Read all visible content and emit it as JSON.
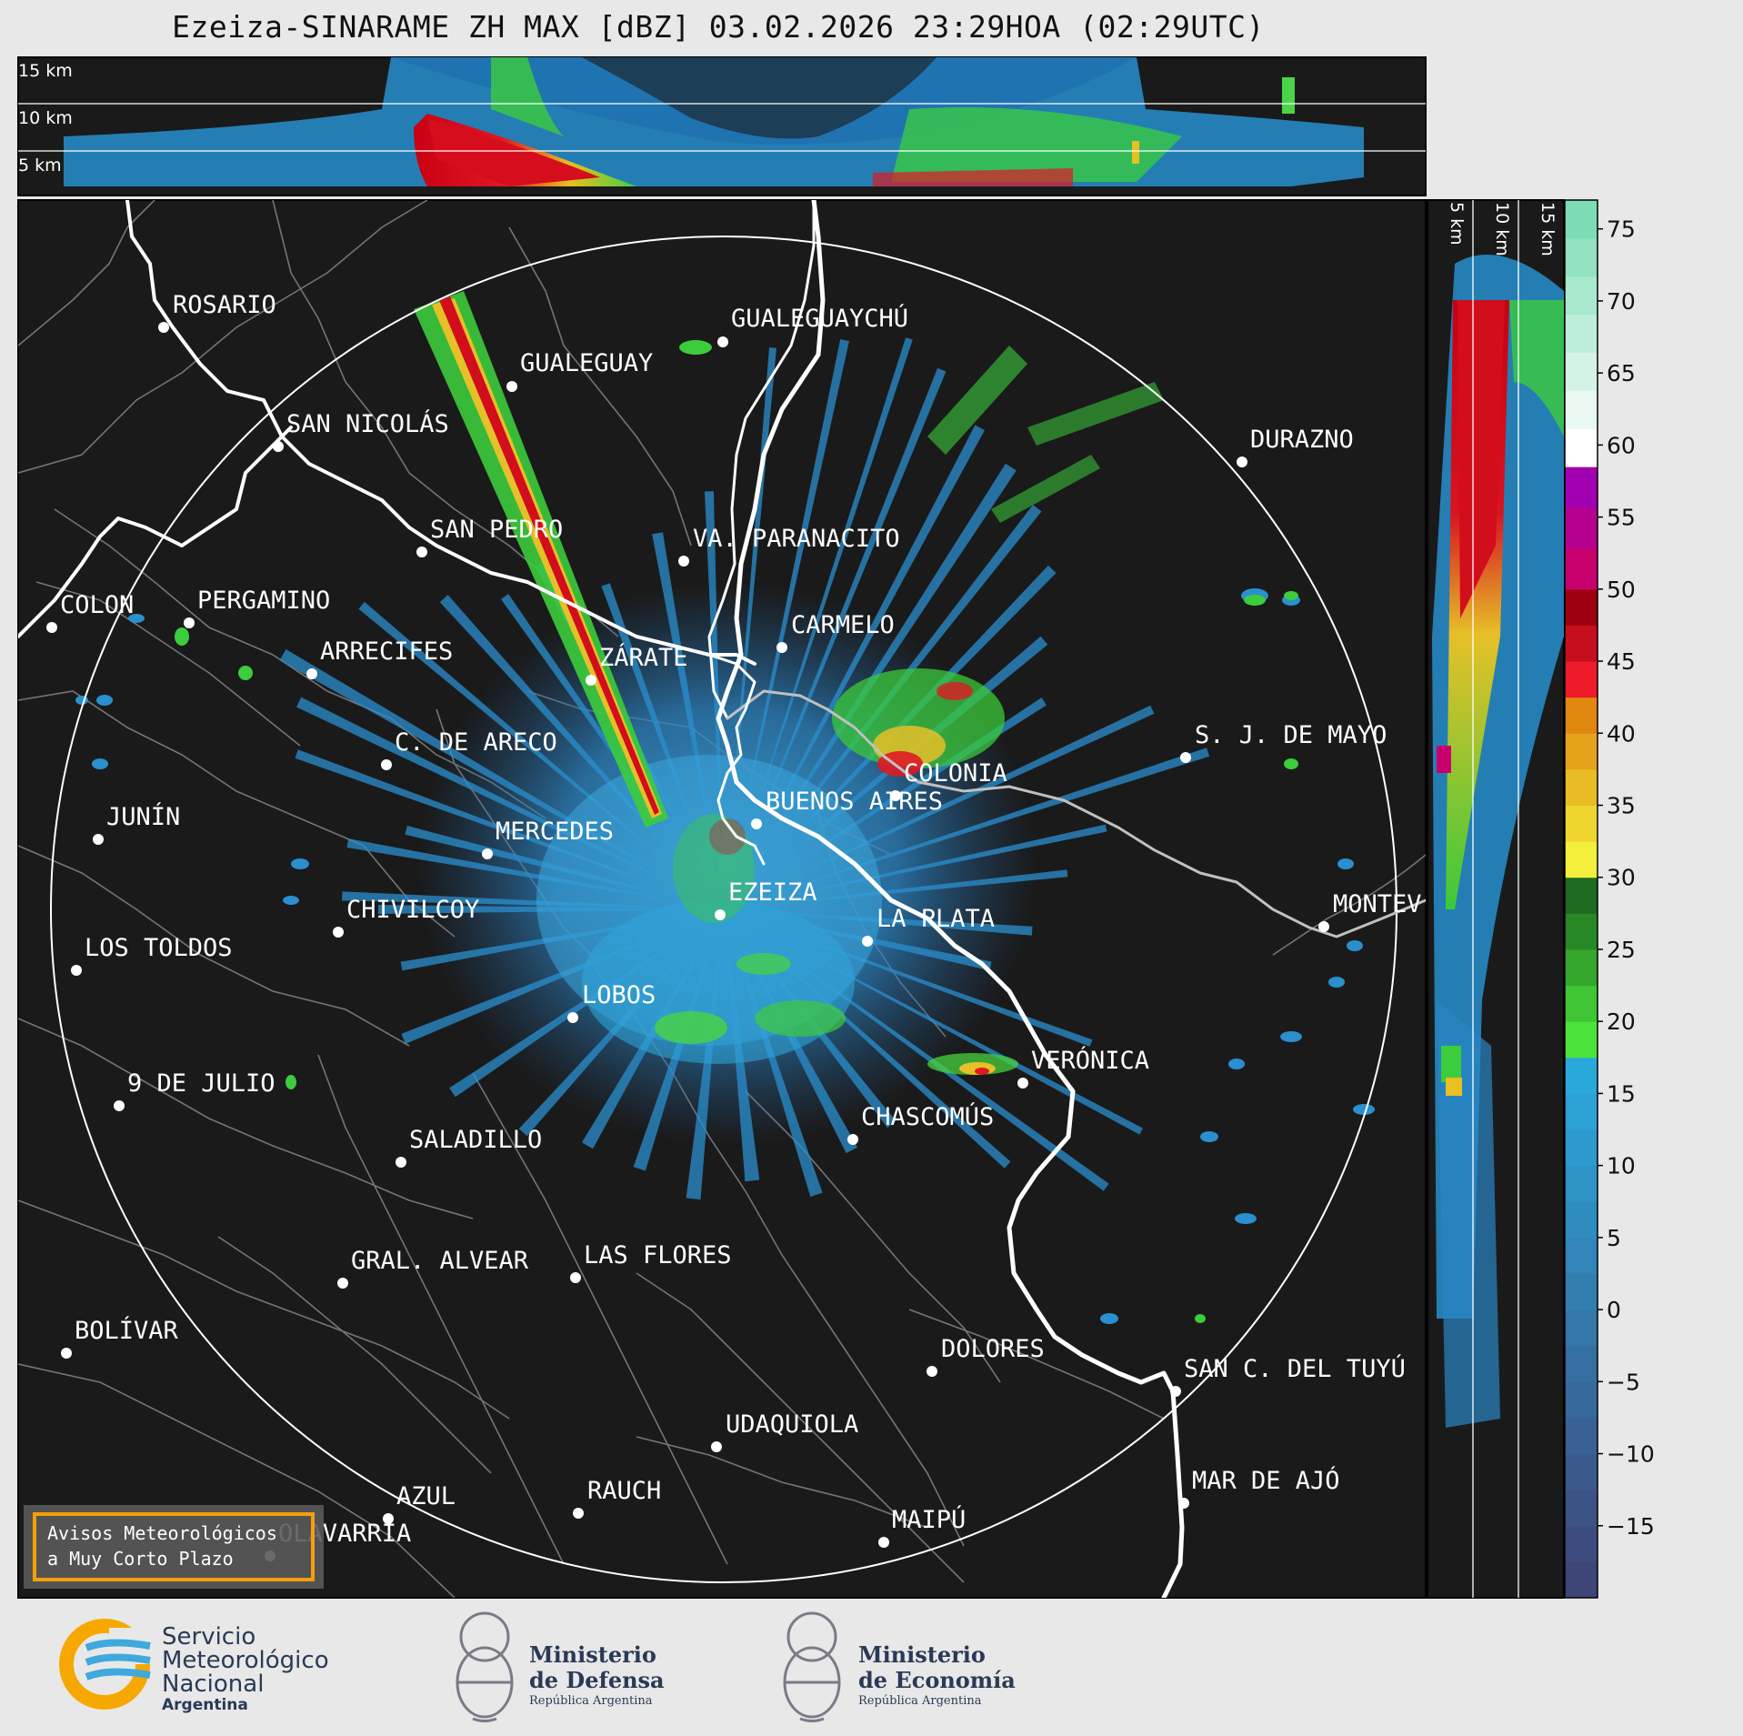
{
  "title": "Ezeiza-SINARAME ZH MAX [dBZ] 03.02.2026 23:29HOA (02:29UTC)",
  "top_panel": {
    "labels": [
      "15 km",
      "10 km",
      "5 km"
    ]
  },
  "side_panel": {
    "labels": [
      "5 km",
      "10 km",
      "15 km"
    ]
  },
  "colorbar": {
    "ticks": [
      "75",
      "70",
      "65",
      "60",
      "55",
      "50",
      "45",
      "40",
      "35",
      "30",
      "25",
      "20",
      "15",
      "10",
      "5",
      "0",
      "−5",
      "−10",
      "−15"
    ],
    "range": [
      -20,
      77
    ],
    "stops": [
      {
        "from": -20,
        "to": 17.5,
        "color_low": "#3e4577",
        "color_high": "#29a8dc"
      },
      {
        "from": 17.5,
        "to": 30,
        "color_low": "#4be33b",
        "color_high": "#1e6a1f"
      },
      {
        "from": 30,
        "to": 42.5,
        "color_low": "#f2ef3a",
        "color_high": "#e08810"
      },
      {
        "from": 42.5,
        "to": 50,
        "color_low": "#ee1c2a",
        "color_high": "#9e0012"
      },
      {
        "from": 50,
        "to": 58.5,
        "color_low": "#c8006e",
        "color_high": "#a100b0"
      },
      {
        "from": 58.5,
        "to": 77,
        "color_low": "#ffffff",
        "color_high": "#7ddcb3"
      }
    ]
  },
  "cities": [
    {
      "name": "ROSARIO"
    },
    {
      "name": "GUALEGUAYCHÚ"
    },
    {
      "name": "GUALEGUAY"
    },
    {
      "name": "SAN NICOLÁS"
    },
    {
      "name": "DURAZNO"
    },
    {
      "name": "SAN PEDRO"
    },
    {
      "name": "VA. PARANACITO"
    },
    {
      "name": "COLON"
    },
    {
      "name": "PERGAMINO"
    },
    {
      "name": "CARMELO"
    },
    {
      "name": "ARRECIFES"
    },
    {
      "name": "ZÁRATE"
    },
    {
      "name": "C. DE ARECO"
    },
    {
      "name": "S. J. DE MAYO"
    },
    {
      "name": "COLONIA"
    },
    {
      "name": "JUNÍN"
    },
    {
      "name": "BUENOS AIRES"
    },
    {
      "name": "MERCEDES"
    },
    {
      "name": "EZEIZA"
    },
    {
      "name": "MONTEV"
    },
    {
      "name": "CHIVILCOY"
    },
    {
      "name": "LA PLATA"
    },
    {
      "name": "LOS TOLDOS"
    },
    {
      "name": "LOBOS"
    },
    {
      "name": "VERÓNICA"
    },
    {
      "name": "9 DE JULIO"
    },
    {
      "name": "CHASCOMÚS"
    },
    {
      "name": "SALADILLO"
    },
    {
      "name": "GRAL. ALVEAR"
    },
    {
      "name": "LAS FLORES"
    },
    {
      "name": "BOLÍVAR"
    },
    {
      "name": "DOLORES"
    },
    {
      "name": "SAN C. DEL TUYÚ"
    },
    {
      "name": "UDAQUIOLA"
    },
    {
      "name": "MAR DE AJÓ"
    },
    {
      "name": "AZUL"
    },
    {
      "name": "RAUCH"
    },
    {
      "name": "OLAVARRÍA"
    },
    {
      "name": "MAIPÚ"
    }
  ],
  "warning_box": {
    "line1": "Avisos Meteorológicos",
    "line2": "a Muy Corto Plazo"
  },
  "footer": {
    "smn": {
      "line1": "Servicio",
      "line2": "Meteorológico",
      "line3": "Nacional",
      "line4": "Argentina"
    },
    "defensa": {
      "line1": "Ministerio",
      "line2": "de Defensa",
      "line3": "República Argentina"
    },
    "economia": {
      "line1": "Ministerio",
      "line2": "de Economía",
      "line3": "República Argentina"
    }
  },
  "colors": {
    "map_bg": "#1a1a1a",
    "coast": "#ffffff",
    "borders": "#7f7f7f",
    "weak_echo": "#2a8fce",
    "warning_border": "#f5a00a"
  }
}
